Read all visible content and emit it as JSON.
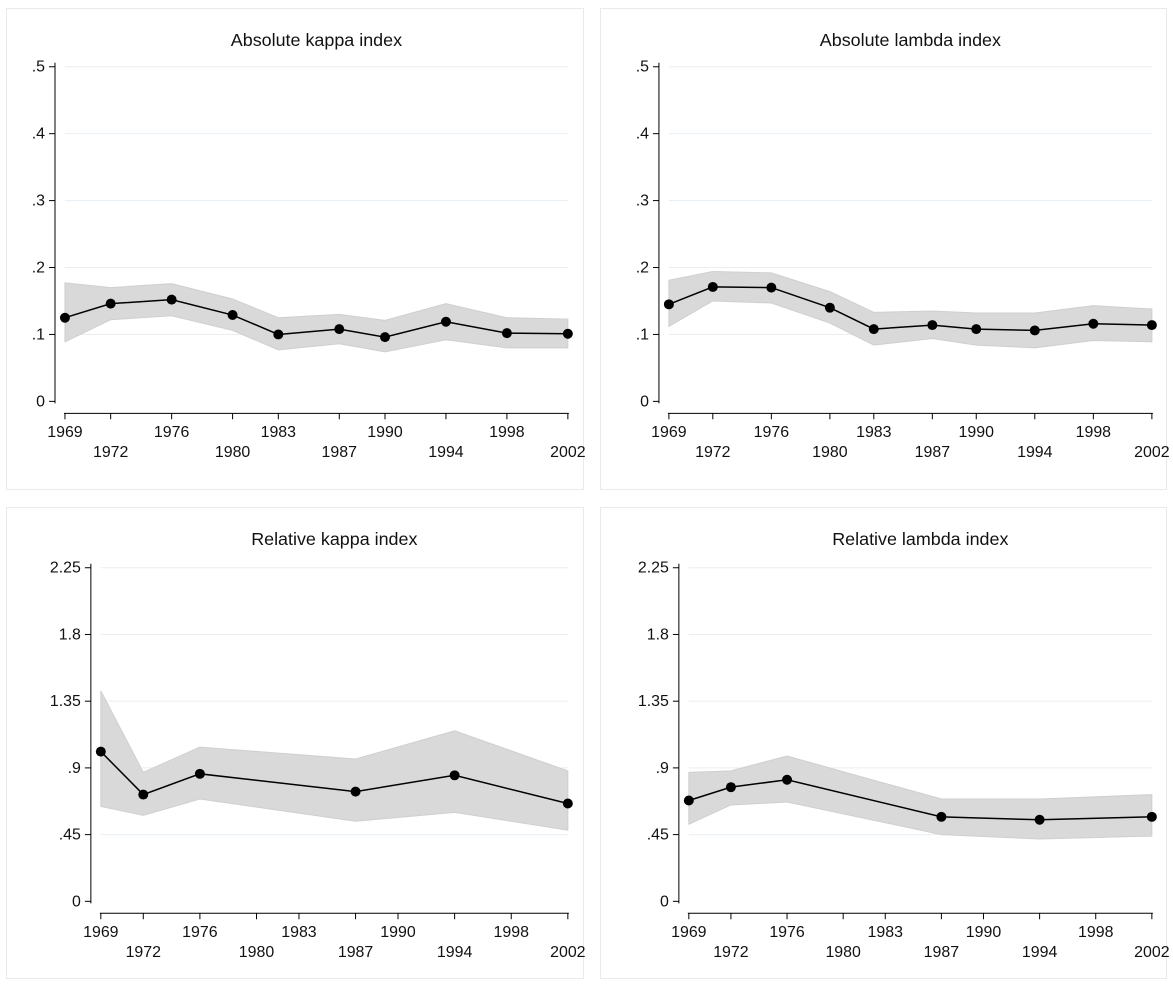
{
  "chart_data": [
    {
      "type": "line",
      "title": "Absolute kappa index",
      "xlabel": "",
      "ylabel": "",
      "x_ticks": [
        1969,
        1972,
        1976,
        1980,
        1983,
        1987,
        1990,
        1994,
        1998,
        2002
      ],
      "x_range": [
        1969,
        2002
      ],
      "y_ticks": [
        0,
        0.1,
        0.2,
        0.3,
        0.4,
        0.5
      ],
      "y_tick_labels": [
        "0",
        ".1",
        ".2",
        ".3",
        ".4",
        ".5"
      ],
      "ylim": [
        0,
        0.5
      ],
      "grid": true,
      "marker_color": "#000000",
      "band_color": "#d9d9d9",
      "series": [
        {
          "x": [
            1969,
            1972,
            1976,
            1980,
            1983,
            1987,
            1990,
            1994,
            1998,
            2002
          ],
          "values": [
            0.125,
            0.146,
            0.152,
            0.129,
            0.1,
            0.108,
            0.096,
            0.119,
            0.102,
            0.101
          ],
          "lower": [
            0.089,
            0.122,
            0.128,
            0.106,
            0.077,
            0.086,
            0.074,
            0.092,
            0.08,
            0.08
          ],
          "upper": [
            0.177,
            0.17,
            0.176,
            0.153,
            0.125,
            0.13,
            0.121,
            0.146,
            0.125,
            0.123
          ]
        }
      ]
    },
    {
      "type": "line",
      "title": "Absolute lambda index",
      "xlabel": "",
      "ylabel": "",
      "x_ticks": [
        1969,
        1972,
        1976,
        1980,
        1983,
        1987,
        1990,
        1994,
        1998,
        2002
      ],
      "x_range": [
        1969,
        2002
      ],
      "y_ticks": [
        0,
        0.1,
        0.2,
        0.3,
        0.4,
        0.5
      ],
      "y_tick_labels": [
        "0",
        ".1",
        ".2",
        ".3",
        ".4",
        ".5"
      ],
      "ylim": [
        0,
        0.5
      ],
      "grid": true,
      "marker_color": "#000000",
      "band_color": "#d9d9d9",
      "series": [
        {
          "x": [
            1969,
            1972,
            1976,
            1980,
            1983,
            1987,
            1990,
            1994,
            1998,
            2002
          ],
          "values": [
            0.145,
            0.171,
            0.17,
            0.14,
            0.108,
            0.114,
            0.108,
            0.106,
            0.116,
            0.114
          ],
          "lower": [
            0.112,
            0.15,
            0.147,
            0.117,
            0.084,
            0.094,
            0.084,
            0.08,
            0.091,
            0.089
          ],
          "upper": [
            0.181,
            0.194,
            0.192,
            0.164,
            0.133,
            0.135,
            0.132,
            0.132,
            0.143,
            0.138
          ]
        }
      ]
    },
    {
      "type": "line",
      "title": "Relative kappa index",
      "xlabel": "",
      "ylabel": "",
      "x_ticks": [
        1969,
        1972,
        1976,
        1980,
        1983,
        1987,
        1990,
        1994,
        1998,
        2002
      ],
      "x_range": [
        1969,
        2002
      ],
      "y_ticks": [
        0,
        0.45,
        0.9,
        1.35,
        1.8,
        2.25
      ],
      "y_tick_labels": [
        "0",
        ".45",
        ".9",
        "1.35",
        "1.8",
        "2.25"
      ],
      "ylim": [
        0,
        2.25
      ],
      "grid": true,
      "marker_color": "#000000",
      "band_color": "#d9d9d9",
      "series": [
        {
          "x": [
            1969,
            1972,
            1976,
            1987,
            1994,
            2002
          ],
          "values": [
            1.01,
            0.72,
            0.86,
            0.74,
            0.85,
            0.66
          ],
          "lower": [
            0.64,
            0.58,
            0.69,
            0.54,
            0.6,
            0.48
          ],
          "upper": [
            1.42,
            0.87,
            1.04,
            0.96,
            1.15,
            0.88
          ]
        }
      ]
    },
    {
      "type": "line",
      "title": "Relative lambda index",
      "xlabel": "",
      "ylabel": "",
      "x_ticks": [
        1969,
        1972,
        1976,
        1980,
        1983,
        1987,
        1990,
        1994,
        1998,
        2002
      ],
      "x_range": [
        1969,
        2002
      ],
      "y_ticks": [
        0,
        0.45,
        0.9,
        1.35,
        1.8,
        2.25
      ],
      "y_tick_labels": [
        "0",
        ".45",
        ".9",
        "1.35",
        "1.8",
        "2.25"
      ],
      "ylim": [
        0,
        2.25
      ],
      "grid": true,
      "marker_color": "#000000",
      "band_color": "#d9d9d9",
      "series": [
        {
          "x": [
            1969,
            1972,
            1976,
            1987,
            1994,
            2002
          ],
          "values": [
            0.68,
            0.77,
            0.82,
            0.57,
            0.55,
            0.57
          ],
          "lower": [
            0.52,
            0.65,
            0.67,
            0.45,
            0.42,
            0.44
          ],
          "upper": [
            0.87,
            0.88,
            0.98,
            0.69,
            0.69,
            0.72
          ]
        }
      ]
    }
  ]
}
